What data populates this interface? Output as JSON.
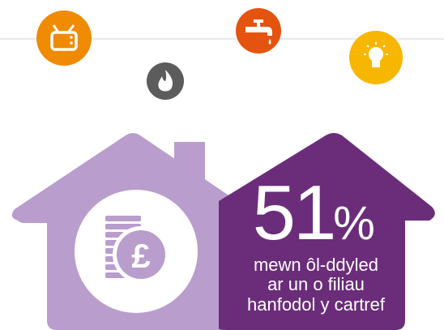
{
  "stat": {
    "number": "51",
    "unit": "%",
    "caption": [
      "mewn ôl-ddyled",
      "ar un o filiau",
      "hanfodol y cartref"
    ]
  }
}
